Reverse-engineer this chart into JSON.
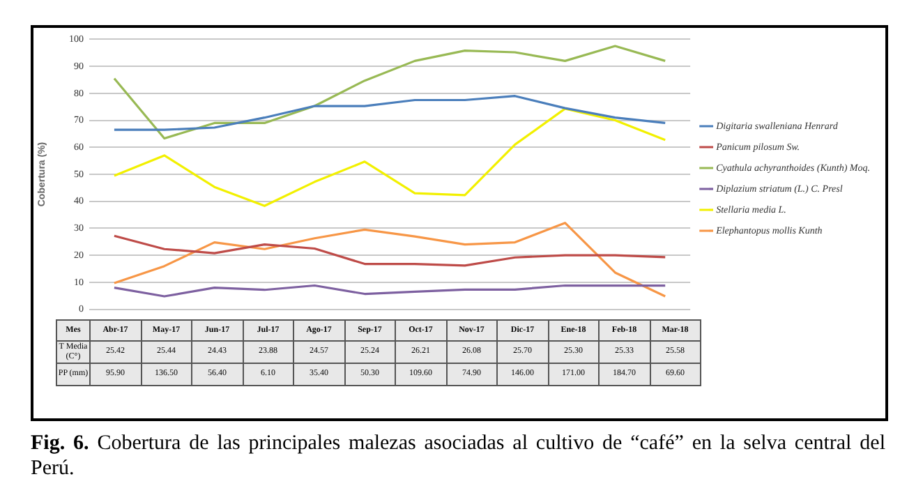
{
  "chart_data": {
    "type": "line",
    "ylabel": "Cobertura (%)",
    "categories": [
      "Abr-17",
      "May-17",
      "Jun-17",
      "Jul-17",
      "Ago-17",
      "Sep-17",
      "Oct-17",
      "Nov-17",
      "Dic-17",
      "Ene-18",
      "Feb-18",
      "Mar-18"
    ],
    "series": [
      {
        "name": "Digitaria swalleniana Henrard",
        "color": "#4a7ebb",
        "values": [
          66.5,
          66.5,
          67.3,
          71,
          75.3,
          75.3,
          77.5,
          77.5,
          79,
          74.5,
          71,
          69
        ]
      },
      {
        "name": "Panicum pilosum Sw.",
        "color": "#be4b48",
        "values": [
          27.2,
          22.3,
          20.8,
          24,
          22.5,
          16.8,
          16.8,
          16.2,
          19.2,
          20,
          20,
          19.3
        ]
      },
      {
        "name": "Cyathula achyranthoides (Kunth) Moq.",
        "color": "#98b954",
        "values": [
          85.5,
          63.3,
          69,
          69,
          75.3,
          84.7,
          92,
          95.8,
          95.2,
          92,
          97.5,
          92
        ]
      },
      {
        "name": "Diplazium striatum (L.) C. Presl",
        "color": "#7d60a0",
        "values": [
          8,
          4.8,
          8,
          7.2,
          8.8,
          5.7,
          6.5,
          7.3,
          7.3,
          8.8,
          8.8,
          8.8
        ]
      },
      {
        "name": "Stellaria media L.",
        "color": "#f2f000",
        "values": [
          49.5,
          57,
          45.3,
          38.3,
          47.2,
          54.7,
          43,
          42.3,
          61,
          74.3,
          70,
          62.7
        ]
      },
      {
        "name": "Elephantopus mollis Kunth",
        "color": "#f79646",
        "values": [
          9.7,
          16,
          24.8,
          22.3,
          26.3,
          29.5,
          27,
          24,
          24.8,
          32,
          13.6,
          4.8
        ]
      }
    ],
    "ylim": [
      0,
      100
    ],
    "yticks": [
      0,
      10,
      20,
      30,
      40,
      50,
      60,
      70,
      80,
      90,
      100
    ],
    "grid": "y",
    "legend": "right",
    "marker": "none",
    "line_style": "solid",
    "annotations": [
      "Mes",
      "T Media (C°)",
      "PP (mm)",
      "Fig. 6. Cobertura de las principales malezas asociadas al cultivo de “café” en la selva central del Perú.",
      "25.42",
      "25.44",
      "24.43",
      "23.88",
      "24.57",
      "25.24",
      "26.21",
      "26.08",
      "25.70",
      "25.30",
      "25.33",
      "25.58",
      "95.90",
      "136.50",
      "56.40",
      "6.10",
      "35.40",
      "50.30",
      "109.60",
      "74.90",
      "146.00",
      "171.00",
      "184.70",
      "69.60"
    ]
  }
}
